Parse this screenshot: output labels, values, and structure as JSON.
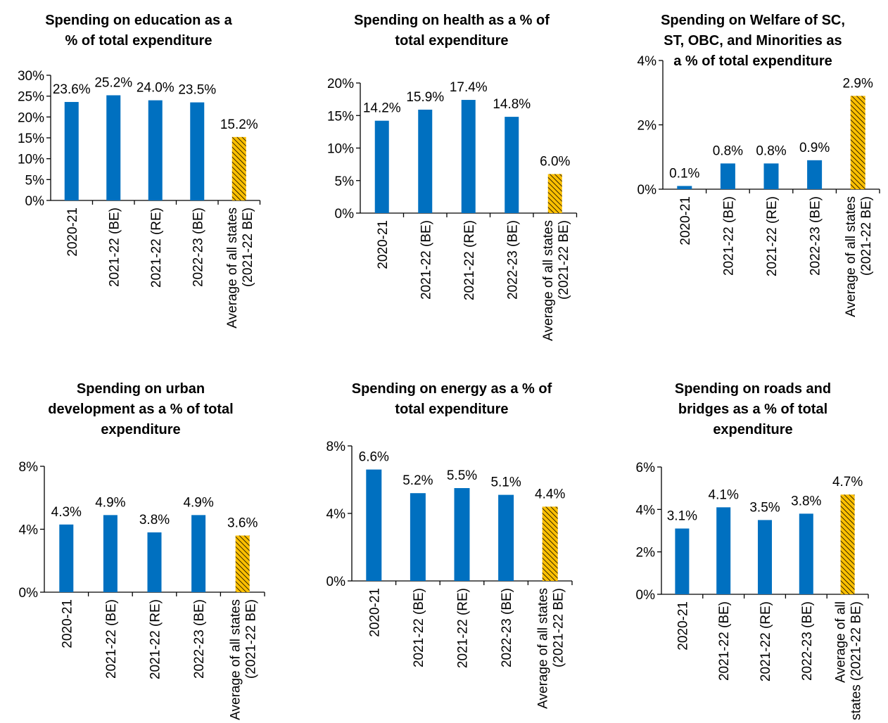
{
  "chart_data": [
    {
      "type": "bar",
      "title": "Spending on education as a\n% of total expenditure",
      "categories": [
        "2020-21",
        "2021-22 (BE)",
        "2021-22 (RE)",
        "2022-23 (BE)",
        "Average of all states\n(2021-22 BE)"
      ],
      "values": [
        23.6,
        25.2,
        24.0,
        23.5,
        15.2
      ],
      "data_labels": [
        "23.6%",
        "25.2%",
        "24.0%",
        "23.5%",
        "15.2%"
      ],
      "ylim": [
        0,
        30
      ],
      "yticks": [
        "0%",
        "5%",
        "10%",
        "15%",
        "20%",
        "25%",
        "30%"
      ],
      "xlabel": "",
      "ylabel": ""
    },
    {
      "type": "bar",
      "title": "Spending on health as a % of\ntotal expenditure",
      "categories": [
        "2020-21",
        "2021-22 (BE)",
        "2021-22 (RE)",
        "2022-23 (BE)",
        "Average of all states\n(2021-22 BE)"
      ],
      "values": [
        14.2,
        15.9,
        17.4,
        14.8,
        6.0
      ],
      "data_labels": [
        "14.2%",
        "15.9%",
        "17.4%",
        "14.8%",
        "6.0%"
      ],
      "ylim": [
        0,
        20
      ],
      "yticks": [
        "0%",
        "5%",
        "10%",
        "15%",
        "20%"
      ],
      "xlabel": "",
      "ylabel": ""
    },
    {
      "type": "bar",
      "title": "Spending on Welfare of SC,\nST, OBC, and Minorities as\na % of total expenditure",
      "categories": [
        "2020-21",
        "2021-22 (BE)",
        "2021-22 (RE)",
        "2022-23 (BE)",
        "Average of all states\n(2021-22 BE)"
      ],
      "values": [
        0.1,
        0.8,
        0.8,
        0.9,
        2.9
      ],
      "data_labels": [
        "0.1%",
        "0.8%",
        "0.8%",
        "0.9%",
        "2.9%"
      ],
      "ylim": [
        0,
        4
      ],
      "yticks": [
        "0%",
        "2%",
        "4%"
      ],
      "xlabel": "",
      "ylabel": ""
    },
    {
      "type": "bar",
      "title": "Spending on urban\ndevelopment as a % of total\nexpenditure",
      "categories": [
        "2020-21",
        "2021-22 (BE)",
        "2021-22 (RE)",
        "2022-23 (BE)",
        "Average of all states\n(2021-22 BE)"
      ],
      "values": [
        4.3,
        4.9,
        3.8,
        4.9,
        3.6
      ],
      "data_labels": [
        "4.3%",
        "4.9%",
        "3.8%",
        "4.9%",
        "3.6%"
      ],
      "ylim": [
        0,
        8
      ],
      "yticks": [
        "0%",
        "4%",
        "8%"
      ],
      "xlabel": "",
      "ylabel": ""
    },
    {
      "type": "bar",
      "title": "Spending on energy as a % of\ntotal expenditure",
      "categories": [
        "2020-21",
        "2021-22 (BE)",
        "2021-22 (RE)",
        "2022-23 (BE)",
        "Average of all states\n(2021-22 BE)"
      ],
      "values": [
        6.6,
        5.2,
        5.5,
        5.1,
        4.4
      ],
      "data_labels": [
        "6.6%",
        "5.2%",
        "5.5%",
        "5.1%",
        "4.4%"
      ],
      "ylim": [
        0,
        8
      ],
      "yticks": [
        "0%",
        "4%",
        "8%"
      ],
      "xlabel": "",
      "ylabel": ""
    },
    {
      "type": "bar",
      "title": "Spending on roads and\nbridges as a % of total\nexpenditure",
      "categories": [
        "2020-21",
        "2021-22 (BE)",
        "2021-22 (RE)",
        "2022-23 (BE)",
        "Average of all\nstates (2021-22 BE)"
      ],
      "values": [
        3.1,
        4.1,
        3.5,
        3.8,
        4.7
      ],
      "data_labels": [
        "3.1%",
        "4.1%",
        "3.5%",
        "3.8%",
        "4.7%"
      ],
      "ylim": [
        0,
        6
      ],
      "yticks": [
        "0%",
        "2%",
        "4%",
        "6%"
      ],
      "xlabel": "",
      "ylabel": ""
    }
  ],
  "colors": {
    "state_bar": "#0070C0",
    "average_bar": "#FFC000",
    "average_hatch": "#000000",
    "axis": "#000000"
  }
}
